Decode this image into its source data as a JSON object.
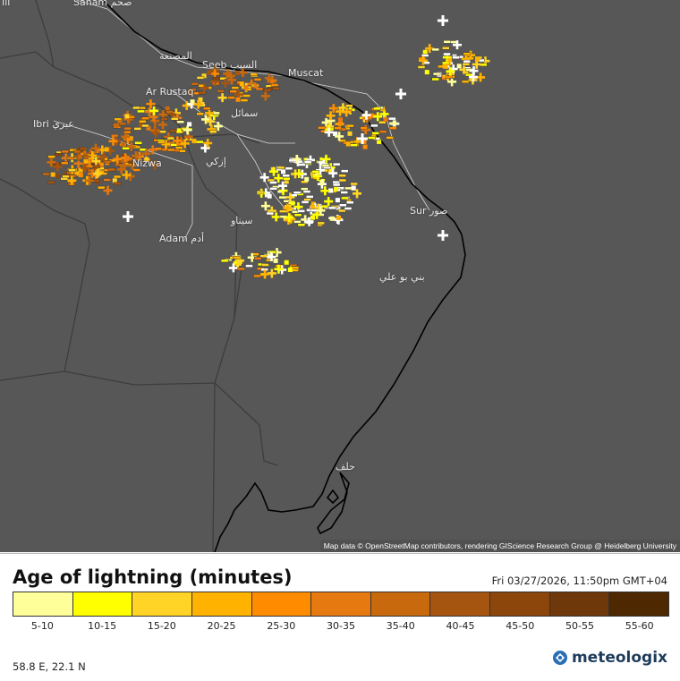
{
  "map": {
    "places": [
      {
        "key": "sahamtop",
        "text": "Saham صحم"
      },
      {
        "key": "masnaa",
        "text": "المصنعة"
      },
      {
        "key": "seeb",
        "text": "Seeb السيب"
      },
      {
        "key": "muscat",
        "text": "Muscat"
      },
      {
        "key": "rustaq",
        "text": "Ar Rustaq"
      },
      {
        "key": "ibri",
        "text": "Ibri عبري"
      },
      {
        "key": "samail",
        "text": "سمائل"
      },
      {
        "key": "izki",
        "text": "إزكي"
      },
      {
        "key": "nizwa",
        "text": "Nizwa"
      },
      {
        "key": "sur",
        "text": "Sur صور"
      },
      {
        "key": "adam",
        "text": "Adam أدم"
      },
      {
        "key": "sinaw",
        "text": "سيناو"
      },
      {
        "key": "bani",
        "text": "بني بو علي"
      },
      {
        "key": "hilf",
        "text": "حلف"
      },
      {
        "key": "topleft",
        "text": "Ili"
      }
    ],
    "attribution": "Map data © OpenStreetMap contributors, rendering GIScience Research Group @ Heidelberg University",
    "colors": {
      "background": "#575757",
      "coastline": "#000000",
      "borders": "#3d3d3d",
      "roads": "#d8d8d8",
      "positive_marker": "#ffffff",
      "negative_marker": "#ffffff"
    },
    "icons": {
      "positive": "plus-sign",
      "negative": "minus-sign"
    }
  },
  "legend": {
    "title": "Age of lightning (minutes)",
    "timestamp": "Fri 03/27/2026, 11:50pm GMT+04",
    "coordinates": "58.8 E, 22.1 N",
    "brand": "meteologix",
    "bins": [
      {
        "label": "5-10",
        "color": "#ffff99"
      },
      {
        "label": "10-15",
        "color": "#ffff00"
      },
      {
        "label": "15-20",
        "color": "#ffd426"
      },
      {
        "label": "20-25",
        "color": "#ffb300"
      },
      {
        "label": "25-30",
        "color": "#ff8c00"
      },
      {
        "label": "30-35",
        "color": "#e67a10"
      },
      {
        "label": "35-40",
        "color": "#c9690d"
      },
      {
        "label": "40-45",
        "color": "#a65510"
      },
      {
        "label": "45-50",
        "color": "#8c460c"
      },
      {
        "label": "50-55",
        "color": "#6e380a"
      },
      {
        "label": "55-60",
        "color": "#4d2800"
      }
    ]
  }
}
